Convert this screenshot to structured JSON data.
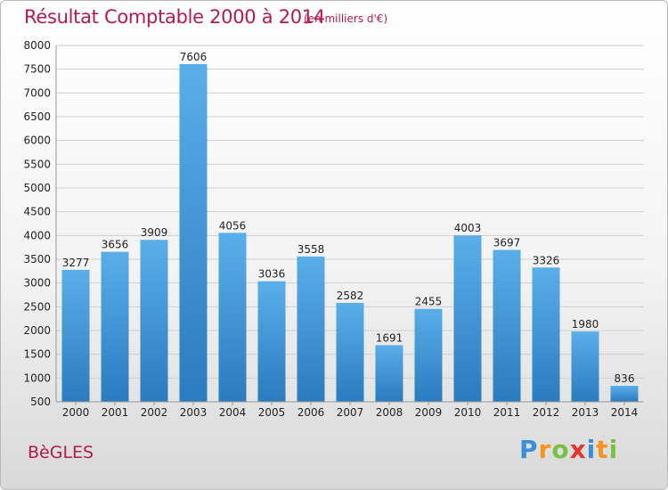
{
  "title": "Résultat Comptable 2000 à 2014",
  "subtitle": "(en milliers d'€)",
  "town": "BèGLES",
  "logo": {
    "letters": [
      "P",
      "r",
      "o",
      "x",
      "i",
      "t",
      "i"
    ],
    "colors": [
      "#3a8fd6",
      "#f7941d",
      "#7ac142",
      "#e5342b",
      "#3a8fd6",
      "#f7941d",
      "#7ac142"
    ]
  },
  "colors": {
    "bar_top": "#5aaee9",
    "bar_bottom": "#2b7bc0",
    "grid": "#cfcfcf",
    "text_accent": "#b5194f"
  },
  "chart_data": {
    "type": "bar",
    "title": "Résultat Comptable 2000 à 2014",
    "subtitle": "(en milliers d'€)",
    "categories": [
      "2000",
      "2001",
      "2002",
      "2003",
      "2004",
      "2005",
      "2006",
      "2007",
      "2008",
      "2009",
      "2010",
      "2011",
      "2012",
      "2013",
      "2014"
    ],
    "values": [
      3277,
      3656,
      3909,
      7606,
      4056,
      3036,
      3558,
      2582,
      1691,
      2455,
      4003,
      3697,
      3326,
      1980,
      836
    ],
    "ylim": [
      500,
      8000
    ],
    "yticks": [
      500,
      1000,
      1500,
      2000,
      2500,
      3000,
      3500,
      4000,
      4500,
      5000,
      5500,
      6000,
      6500,
      7000,
      7500,
      8000
    ],
    "grid": true
  }
}
